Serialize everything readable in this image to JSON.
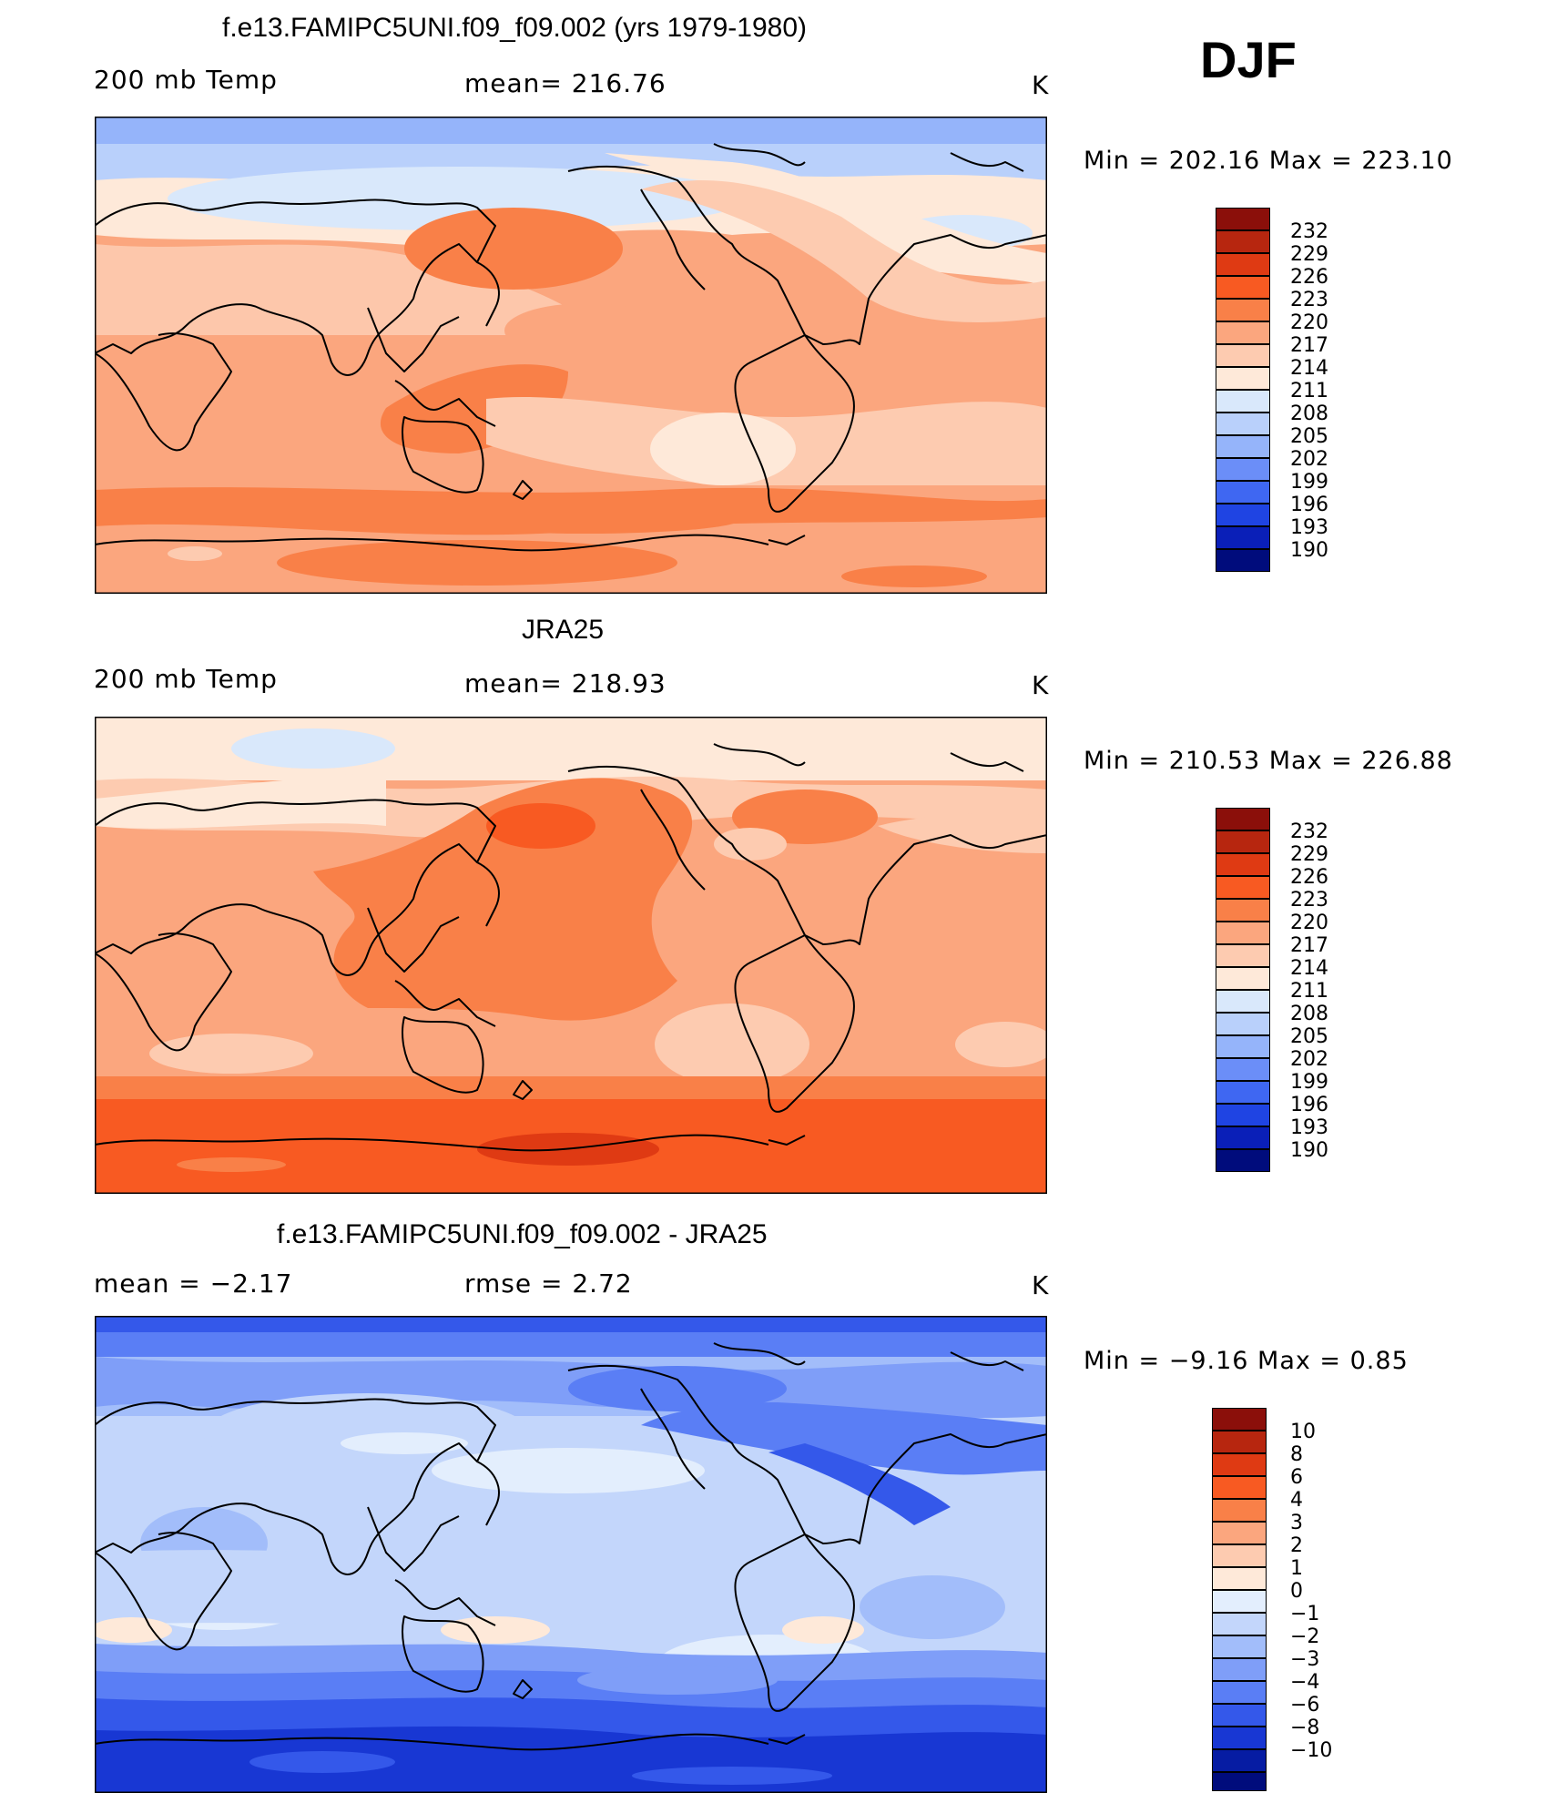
{
  "season": "DJF",
  "panels": [
    {
      "title": "f.e13.FAMIPC5UNI.f09_f09.002 (yrs 1979-1980)",
      "left_label": "200 mb Temp",
      "center_label": "mean= 216.76",
      "unit": "K",
      "minmax": "Min = 202.16 Max = 223.10",
      "colorbar": [
        "232",
        "229",
        "226",
        "223",
        "220",
        "217",
        "214",
        "211",
        "208",
        "205",
        "202",
        "199",
        "196",
        "193",
        "190"
      ]
    },
    {
      "title": "JRA25",
      "left_label": "200 mb Temp",
      "center_label": "mean= 218.93",
      "unit": "K",
      "minmax": "Min = 210.53 Max = 226.88",
      "colorbar": [
        "232",
        "229",
        "226",
        "223",
        "220",
        "217",
        "214",
        "211",
        "208",
        "205",
        "202",
        "199",
        "196",
        "193",
        "190"
      ]
    },
    {
      "title": "f.e13.FAMIPC5UNI.f09_f09.002 - JRA25",
      "left_label": "mean = −2.17",
      "center_label": "rmse = 2.72",
      "unit": "K",
      "minmax": "Min = −9.16 Max = 0.85",
      "colorbar": [
        "10",
        "8",
        "6",
        "4",
        "3",
        "2",
        "1",
        "0",
        "−1",
        "−2",
        "−3",
        "−4",
        "−6",
        "−8",
        "−10"
      ]
    }
  ],
  "colors": {
    "temp_scale": [
      "#8b0f0a",
      "#b7260f",
      "#df3a13",
      "#f85a22",
      "#f98048",
      "#fba67e",
      "#fdcbb0",
      "#fee9d9",
      "#d9e8fb",
      "#b9d0fb",
      "#95b4fa",
      "#6b8ef8",
      "#3f67f2",
      "#1f44e3",
      "#0a1fb8",
      "#000c7c"
    ],
    "diff_scale": [
      "#8b0f0a",
      "#b7260f",
      "#df3a13",
      "#f85a22",
      "#f98048",
      "#fba67e",
      "#fdcbb0",
      "#fee9d9",
      "#e3eefd",
      "#c3d6fb",
      "#a2bdfa",
      "#7f9ef8",
      "#5a7ef5",
      "#3458ea",
      "#1837d3",
      "#061ca3",
      "#000c7c"
    ]
  }
}
